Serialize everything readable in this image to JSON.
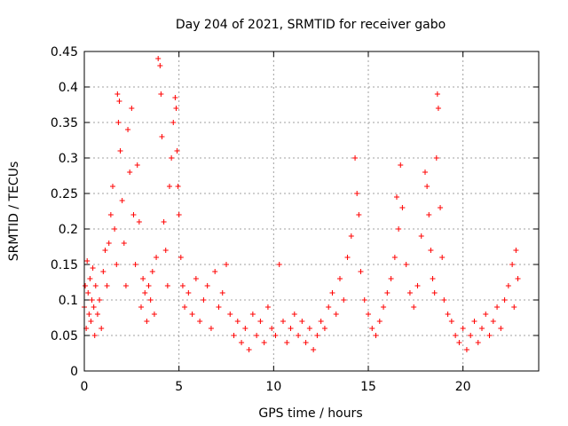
{
  "chart_data": {
    "type": "scatter",
    "title": "Day 204 of 2021, SRMTID for receiver gabo",
    "xlabel": "GPS time / hours",
    "ylabel": "SRMTID / TECUs",
    "xlim": [
      0,
      24
    ],
    "ylim": [
      0,
      0.45
    ],
    "xticks": [
      0,
      5,
      10,
      15,
      20
    ],
    "xtick_labels": [
      "0",
      "5",
      "10",
      "15",
      "20"
    ],
    "yticks": [
      0,
      0.05,
      0.1,
      0.15,
      0.2,
      0.25,
      0.3,
      0.35,
      0.4,
      0.45
    ],
    "ytick_labels": [
      "0",
      "0.05",
      "0.1",
      "0.15",
      "0.2",
      "0.25",
      "0.3",
      "0.35",
      "0.4",
      "0.45"
    ],
    "grid": true,
    "marker": "plus",
    "marker_color": "#ff0000",
    "series": [
      {
        "name": "SRMTID",
        "points": [
          [
            0.0,
            0.09
          ],
          [
            0.05,
            0.12
          ],
          [
            0.1,
            0.06
          ],
          [
            0.15,
            0.155
          ],
          [
            0.2,
            0.11
          ],
          [
            0.25,
            0.08
          ],
          [
            0.3,
            0.13
          ],
          [
            0.35,
            0.07
          ],
          [
            0.4,
            0.1
          ],
          [
            0.45,
            0.145
          ],
          [
            0.5,
            0.09
          ],
          [
            0.55,
            0.05
          ],
          [
            0.6,
            0.12
          ],
          [
            0.7,
            0.08
          ],
          [
            0.8,
            0.1
          ],
          [
            0.9,
            0.06
          ],
          [
            1.0,
            0.14
          ],
          [
            1.1,
            0.17
          ],
          [
            1.2,
            0.12
          ],
          [
            1.3,
            0.18
          ],
          [
            1.4,
            0.22
          ],
          [
            1.5,
            0.26
          ],
          [
            1.6,
            0.2
          ],
          [
            1.7,
            0.15
          ],
          [
            1.75,
            0.39
          ],
          [
            1.8,
            0.35
          ],
          [
            1.85,
            0.38
          ],
          [
            1.9,
            0.31
          ],
          [
            2.0,
            0.24
          ],
          [
            2.1,
            0.18
          ],
          [
            2.2,
            0.12
          ],
          [
            2.3,
            0.34
          ],
          [
            2.4,
            0.28
          ],
          [
            2.5,
            0.37
          ],
          [
            2.6,
            0.22
          ],
          [
            2.7,
            0.15
          ],
          [
            2.8,
            0.29
          ],
          [
            2.9,
            0.21
          ],
          [
            3.0,
            0.09
          ],
          [
            3.1,
            0.13
          ],
          [
            3.2,
            0.11
          ],
          [
            3.3,
            0.07
          ],
          [
            3.4,
            0.12
          ],
          [
            3.5,
            0.1
          ],
          [
            3.6,
            0.14
          ],
          [
            3.7,
            0.08
          ],
          [
            3.8,
            0.16
          ],
          [
            3.9,
            0.44
          ],
          [
            4.0,
            0.43
          ],
          [
            4.05,
            0.39
          ],
          [
            4.1,
            0.33
          ],
          [
            4.2,
            0.21
          ],
          [
            4.3,
            0.17
          ],
          [
            4.4,
            0.12
          ],
          [
            4.5,
            0.26
          ],
          [
            4.6,
            0.3
          ],
          [
            4.7,
            0.35
          ],
          [
            4.8,
            0.385
          ],
          [
            4.85,
            0.37
          ],
          [
            4.9,
            0.31
          ],
          [
            4.95,
            0.26
          ],
          [
            5.0,
            0.22
          ],
          [
            5.1,
            0.16
          ],
          [
            5.2,
            0.12
          ],
          [
            5.3,
            0.09
          ],
          [
            5.5,
            0.11
          ],
          [
            5.7,
            0.08
          ],
          [
            5.9,
            0.13
          ],
          [
            6.1,
            0.07
          ],
          [
            6.3,
            0.1
          ],
          [
            6.5,
            0.12
          ],
          [
            6.7,
            0.06
          ],
          [
            6.9,
            0.14
          ],
          [
            7.1,
            0.09
          ],
          [
            7.3,
            0.11
          ],
          [
            7.5,
            0.15
          ],
          [
            7.7,
            0.08
          ],
          [
            7.9,
            0.05
          ],
          [
            8.1,
            0.07
          ],
          [
            8.3,
            0.04
          ],
          [
            8.5,
            0.06
          ],
          [
            8.7,
            0.03
          ],
          [
            8.9,
            0.08
          ],
          [
            9.1,
            0.05
          ],
          [
            9.3,
            0.07
          ],
          [
            9.5,
            0.04
          ],
          [
            9.7,
            0.09
          ],
          [
            9.9,
            0.06
          ],
          [
            10.1,
            0.05
          ],
          [
            10.3,
            0.15
          ],
          [
            10.5,
            0.07
          ],
          [
            10.7,
            0.04
          ],
          [
            10.9,
            0.06
          ],
          [
            11.1,
            0.08
          ],
          [
            11.3,
            0.05
          ],
          [
            11.5,
            0.07
          ],
          [
            11.7,
            0.04
          ],
          [
            11.9,
            0.06
          ],
          [
            12.1,
            0.03
          ],
          [
            12.3,
            0.05
          ],
          [
            12.5,
            0.07
          ],
          [
            12.7,
            0.06
          ],
          [
            12.9,
            0.09
          ],
          [
            13.1,
            0.11
          ],
          [
            13.3,
            0.08
          ],
          [
            13.5,
            0.13
          ],
          [
            13.7,
            0.1
          ],
          [
            13.9,
            0.16
          ],
          [
            14.1,
            0.19
          ],
          [
            14.3,
            0.3
          ],
          [
            14.4,
            0.25
          ],
          [
            14.5,
            0.22
          ],
          [
            14.6,
            0.14
          ],
          [
            14.8,
            0.1
          ],
          [
            15.0,
            0.08
          ],
          [
            15.2,
            0.06
          ],
          [
            15.4,
            0.05
          ],
          [
            15.6,
            0.07
          ],
          [
            15.8,
            0.09
          ],
          [
            16.0,
            0.11
          ],
          [
            16.2,
            0.13
          ],
          [
            16.4,
            0.16
          ],
          [
            16.5,
            0.245
          ],
          [
            16.6,
            0.2
          ],
          [
            16.7,
            0.29
          ],
          [
            16.8,
            0.23
          ],
          [
            17.0,
            0.15
          ],
          [
            17.2,
            0.11
          ],
          [
            17.4,
            0.09
          ],
          [
            17.6,
            0.12
          ],
          [
            17.8,
            0.19
          ],
          [
            18.0,
            0.28
          ],
          [
            18.1,
            0.26
          ],
          [
            18.2,
            0.22
          ],
          [
            18.3,
            0.17
          ],
          [
            18.4,
            0.13
          ],
          [
            18.5,
            0.11
          ],
          [
            18.6,
            0.3
          ],
          [
            18.65,
            0.39
          ],
          [
            18.7,
            0.37
          ],
          [
            18.8,
            0.23
          ],
          [
            18.9,
            0.16
          ],
          [
            19.0,
            0.1
          ],
          [
            19.2,
            0.08
          ],
          [
            19.4,
            0.07
          ],
          [
            19.6,
            0.05
          ],
          [
            19.8,
            0.04
          ],
          [
            20.0,
            0.06
          ],
          [
            20.2,
            0.03
          ],
          [
            20.4,
            0.05
          ],
          [
            20.6,
            0.07
          ],
          [
            20.8,
            0.04
          ],
          [
            21.0,
            0.06
          ],
          [
            21.2,
            0.08
          ],
          [
            21.4,
            0.05
          ],
          [
            21.6,
            0.07
          ],
          [
            21.8,
            0.09
          ],
          [
            22.0,
            0.06
          ],
          [
            22.2,
            0.1
          ],
          [
            22.4,
            0.12
          ],
          [
            22.6,
            0.15
          ],
          [
            22.7,
            0.09
          ],
          [
            22.8,
            0.17
          ],
          [
            22.9,
            0.13
          ]
        ]
      }
    ]
  }
}
